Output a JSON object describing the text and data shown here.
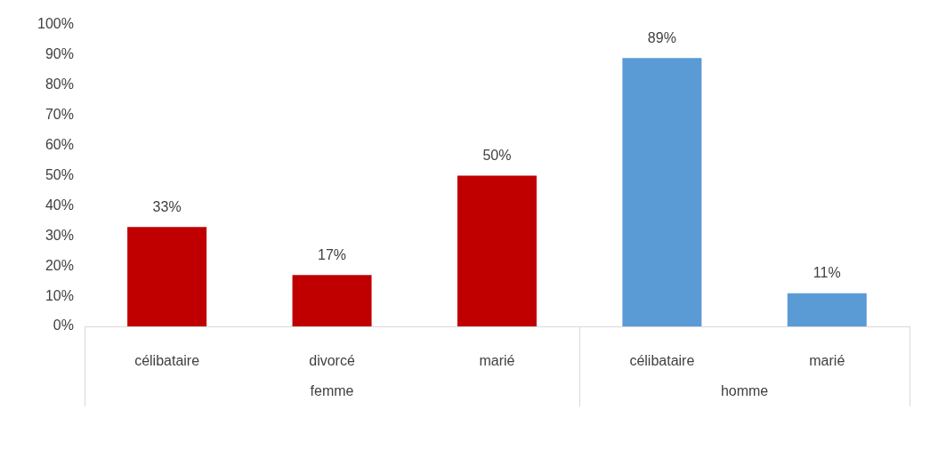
{
  "chart_data": {
    "type": "bar",
    "categories": [
      "célibataire",
      "divorcé",
      "marié",
      "célibataire",
      "marié"
    ],
    "series": [
      {
        "color": "#c00000",
        "values": [
          33,
          17,
          50,
          null,
          null
        ],
        "value_labels": [
          "33%",
          "17%",
          "50%",
          null,
          null
        ]
      },
      {
        "color": "#5b9bd5",
        "values": [
          null,
          null,
          null,
          89,
          11
        ],
        "value_labels": [
          null,
          null,
          null,
          "89%",
          "11%"
        ]
      }
    ],
    "ylim": [
      0,
      100
    ],
    "yticks": [
      {
        "value": 0,
        "label": "0%"
      },
      {
        "value": 10,
        "label": "10%"
      },
      {
        "value": 20,
        "label": "20%"
      },
      {
        "value": 30,
        "label": "30%"
      },
      {
        "value": 40,
        "label": "40%"
      },
      {
        "value": 50,
        "label": "50%"
      },
      {
        "value": 60,
        "label": "60%"
      },
      {
        "value": 70,
        "label": "70%"
      },
      {
        "value": 80,
        "label": "80%"
      },
      {
        "value": 90,
        "label": "90%"
      },
      {
        "value": 100,
        "label": "100%"
      }
    ],
    "annotations": [
      "femme",
      "homme"
    ],
    "grid": false,
    "legend": false
  }
}
